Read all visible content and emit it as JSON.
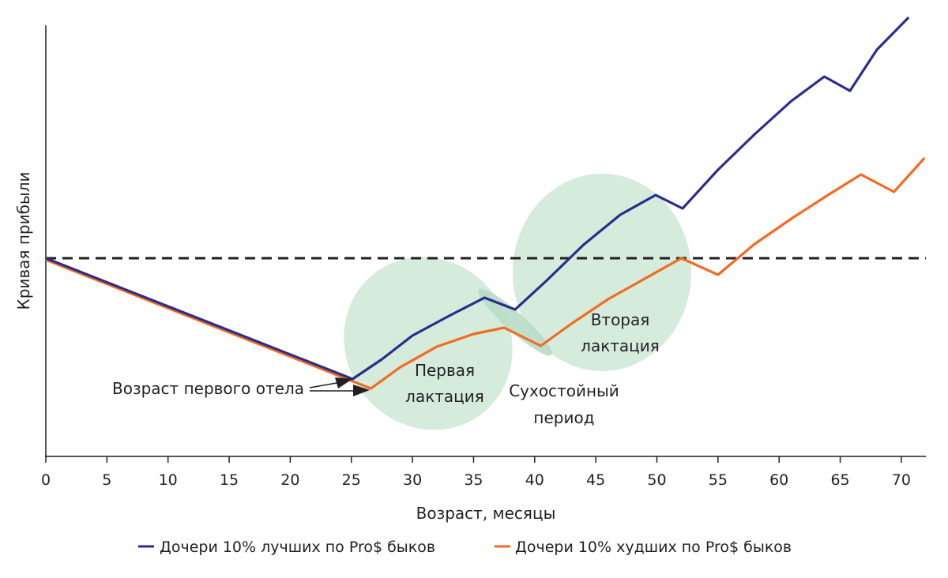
{
  "chart_data": {
    "type": "line",
    "title": "",
    "xlabel": "Возраст, месяцы",
    "ylabel": "Кривая прибыли",
    "xlim": [
      0,
      72
    ],
    "ylim": [
      -25,
      30
    ],
    "xticks": [
      0,
      5,
      10,
      15,
      20,
      25,
      30,
      35,
      40,
      45,
      50,
      55,
      60,
      65,
      70
    ],
    "grid": false,
    "baseline": {
      "y": 0,
      "style": "dashed",
      "color": "#231f20"
    },
    "legend_position": "bottom",
    "series": [
      {
        "name": "Дочери 10% лучших по Pro$ быков",
        "color": "#2b2d8c",
        "points": [
          [
            0,
            0
          ],
          [
            25.1,
            -15.3
          ],
          [
            27.5,
            -12.8
          ],
          [
            30,
            -9.8
          ],
          [
            33,
            -7.3
          ],
          [
            35.9,
            -5.0
          ],
          [
            38.4,
            -6.5
          ],
          [
            41,
            -2.8
          ],
          [
            44,
            1.7
          ],
          [
            47,
            5.5
          ],
          [
            49.9,
            8.0
          ],
          [
            52.1,
            6.3
          ],
          [
            55,
            11.2
          ],
          [
            58,
            15.7
          ],
          [
            61,
            19.9
          ],
          [
            63.7,
            23.0
          ],
          [
            65.8,
            21.2
          ],
          [
            68,
            26.4
          ],
          [
            70.6,
            30.5
          ]
        ]
      },
      {
        "name": "Дочери 10% худших по Pro$ быков",
        "color": "#f26b21",
        "points": [
          [
            0,
            -0.2
          ],
          [
            26.6,
            -16.5
          ],
          [
            29,
            -13.8
          ],
          [
            32,
            -11.2
          ],
          [
            35,
            -9.6
          ],
          [
            37.5,
            -8.8
          ],
          [
            40.5,
            -11.1
          ],
          [
            43,
            -8.3
          ],
          [
            46,
            -5.2
          ],
          [
            49,
            -2.6
          ],
          [
            52,
            0
          ],
          [
            55,
            -2.1
          ],
          [
            58,
            1.8
          ],
          [
            61,
            5.0
          ],
          [
            64,
            8.0
          ],
          [
            66.7,
            10.6
          ],
          [
            69.4,
            8.4
          ],
          [
            71.9,
            12.7
          ]
        ]
      }
    ],
    "annotations": {
      "first_calving": "Возраст первого отела",
      "first_lactation": [
        "Первая",
        "лактация"
      ],
      "dry_period": [
        "Сухостойный",
        "период"
      ],
      "second_lactation": [
        "Вторая",
        "лактация"
      ]
    },
    "region_color": "#d5ebdc"
  }
}
